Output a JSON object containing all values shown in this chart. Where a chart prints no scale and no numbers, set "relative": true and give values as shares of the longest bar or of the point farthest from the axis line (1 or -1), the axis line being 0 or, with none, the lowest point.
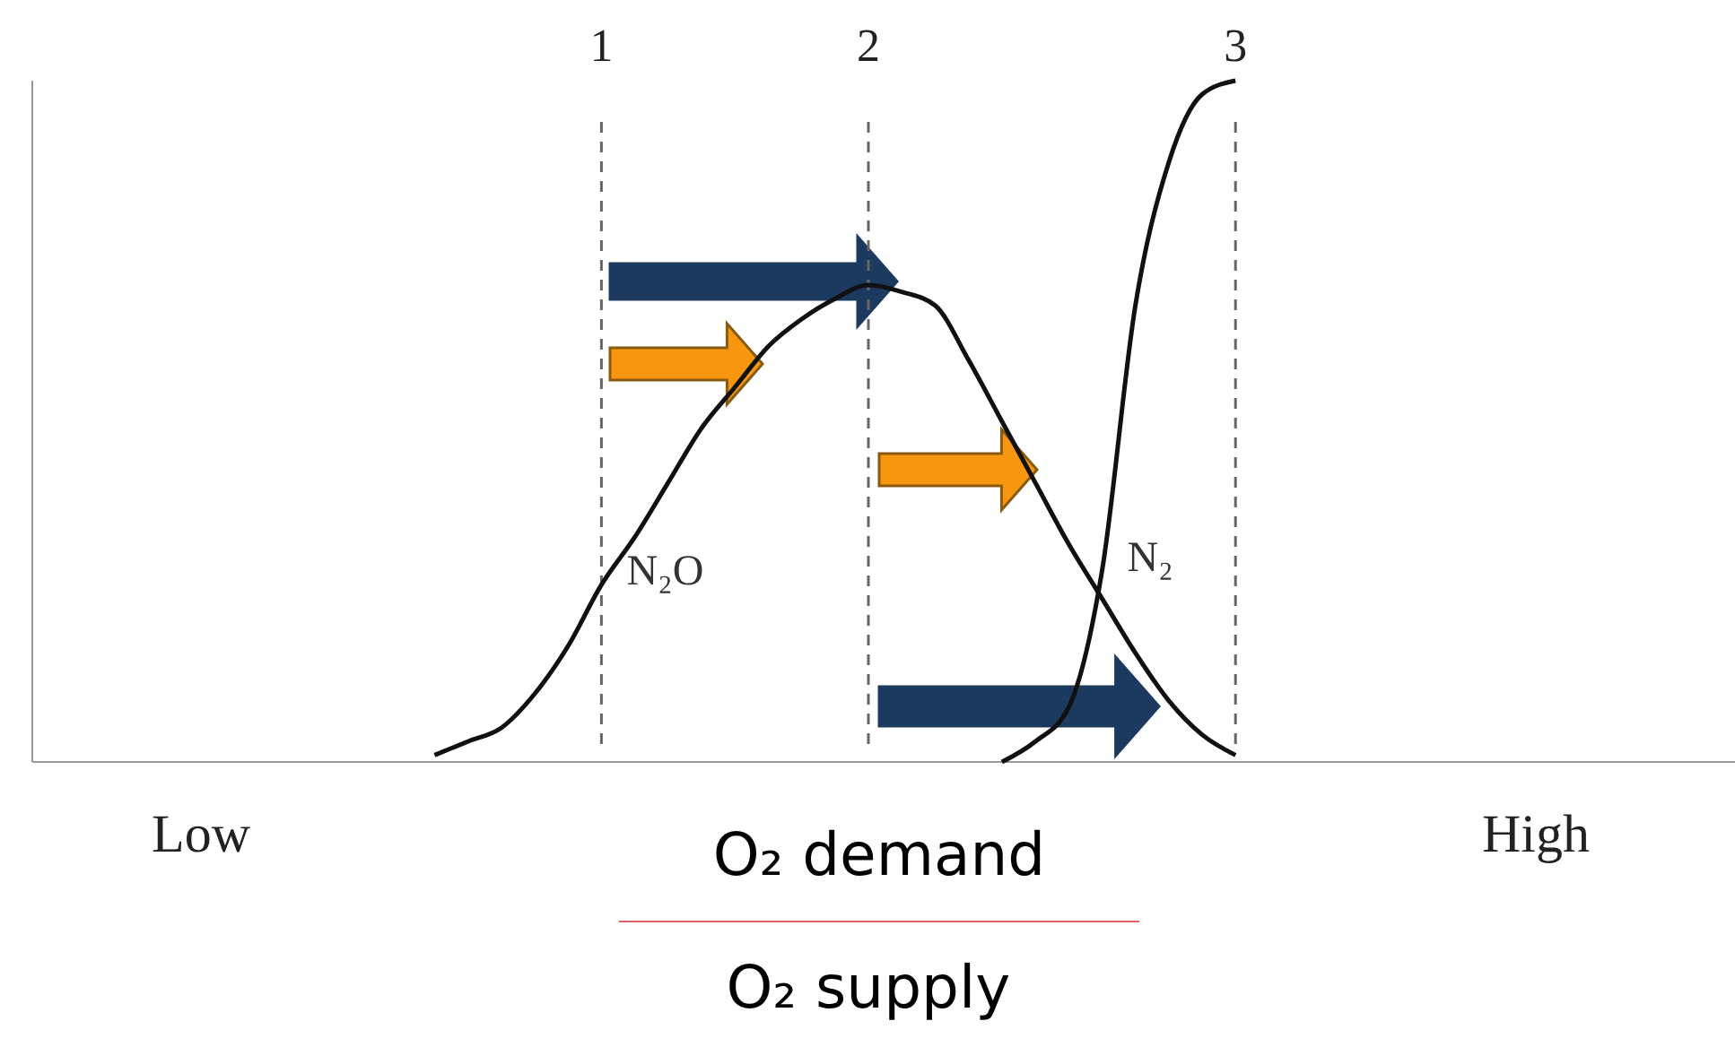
{
  "chart_data": {
    "type": "line",
    "relative": true,
    "xlabel": "O₂ demand",
    "annotations": [
      "O₂ supply"
    ],
    "categories": [
      "Low",
      null,
      null,
      null,
      null,
      null,
      null,
      null,
      null,
      null,
      null,
      null,
      "1",
      null,
      null,
      null,
      null,
      null,
      null,
      null,
      "2",
      null,
      null,
      null,
      null,
      null,
      null,
      null,
      null,
      null,
      null,
      "3",
      null,
      null,
      null,
      null,
      null,
      null,
      null,
      null,
      "High"
    ],
    "tick_labels": "x",
    "marker": "none",
    "line_style": "solid",
    "series": [
      {
        "name": "N₂O",
        "color": "#111111",
        "values": [
          null,
          null,
          null,
          null,
          null,
          null,
          null,
          0.01,
          0.03,
          0.05,
          0.1,
          0.17,
          0.26,
          0.33,
          0.41,
          0.49,
          0.55,
          0.61,
          0.65,
          0.68,
          0.7,
          0.69,
          0.67,
          0.59,
          0.5,
          0.41,
          0.32,
          0.24,
          0.16,
          0.09,
          0.04,
          0.01,
          null,
          null,
          null,
          null,
          null,
          null,
          null,
          null,
          null
        ]
      },
      {
        "name": "N₂",
        "color": "#111111",
        "values": [
          null,
          null,
          null,
          null,
          null,
          null,
          null,
          null,
          null,
          null,
          null,
          null,
          null,
          null,
          null,
          null,
          null,
          null,
          null,
          null,
          null,
          null,
          null,
          null,
          0,
          0.03,
          0.08,
          0.28,
          0.67,
          0.88,
          0.98,
          1,
          null,
          null,
          null,
          null,
          null,
          null,
          null,
          null,
          null
        ]
      }
    ],
    "ref_lines": [
      {
        "axis": "x",
        "value": "1",
        "color": "#666666",
        "line_style": "dashed"
      },
      {
        "axis": "x",
        "value": "2",
        "color": "#666666",
        "line_style": "dashed"
      },
      {
        "axis": "x",
        "value": "3",
        "color": "#666666",
        "line_style": "dashed"
      }
    ]
  }
}
